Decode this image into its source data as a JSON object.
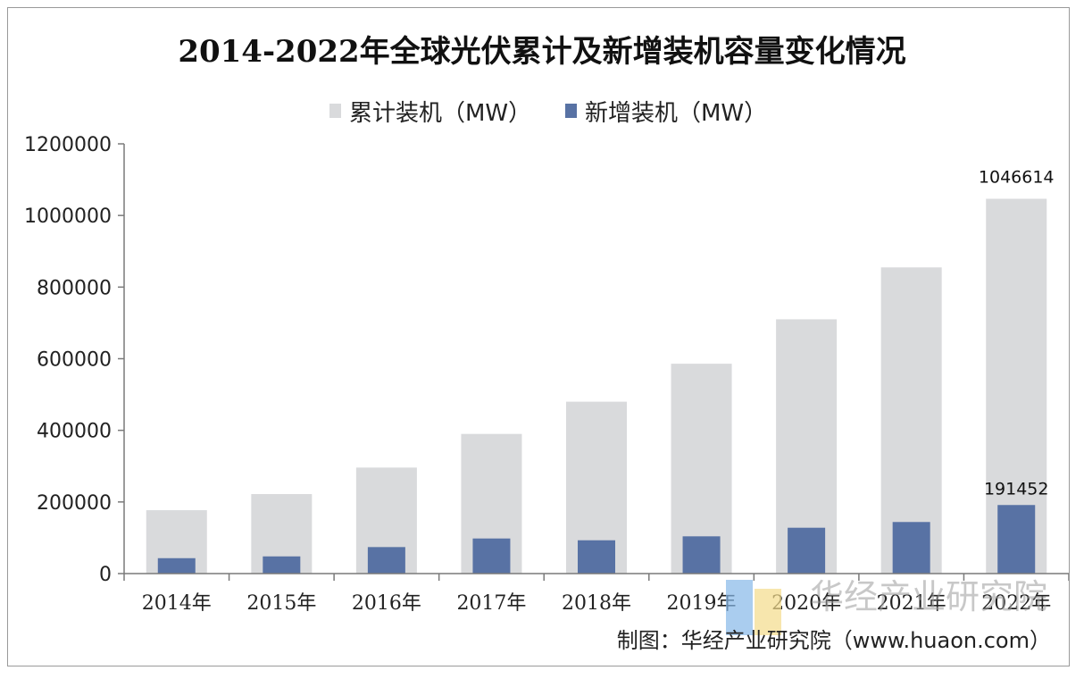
{
  "chart_data": {
    "type": "bar",
    "title": "2014-2022年全球光伏累计及新增装机容量变化情况",
    "categories": [
      "2014年",
      "2015年",
      "2016年",
      "2017年",
      "2018年",
      "2019年",
      "2020年",
      "2021年",
      "2022年"
    ],
    "series": [
      {
        "name": "累计装机（MW）",
        "values": [
          177000,
          222000,
          296000,
          390000,
          480000,
          586000,
          710000,
          855000,
          1046614
        ],
        "color": "#d9dadc"
      },
      {
        "name": "新增装机（MW）",
        "values": [
          43000,
          48000,
          74000,
          98000,
          93000,
          104000,
          128000,
          144000,
          191452
        ],
        "color": "#5872a4"
      }
    ],
    "data_labels": [
      "1046614",
      "191452"
    ],
    "yticks": [
      "0",
      "200000",
      "400000",
      "600000",
      "800000",
      "1000000",
      "1200000"
    ],
    "ylim": [
      0,
      1200000
    ],
    "legend_position": "top",
    "grid": false
  },
  "source_text": "制图：华经产业研究院（www.huaon.com）",
  "watermark_text": "华经产业研究院"
}
